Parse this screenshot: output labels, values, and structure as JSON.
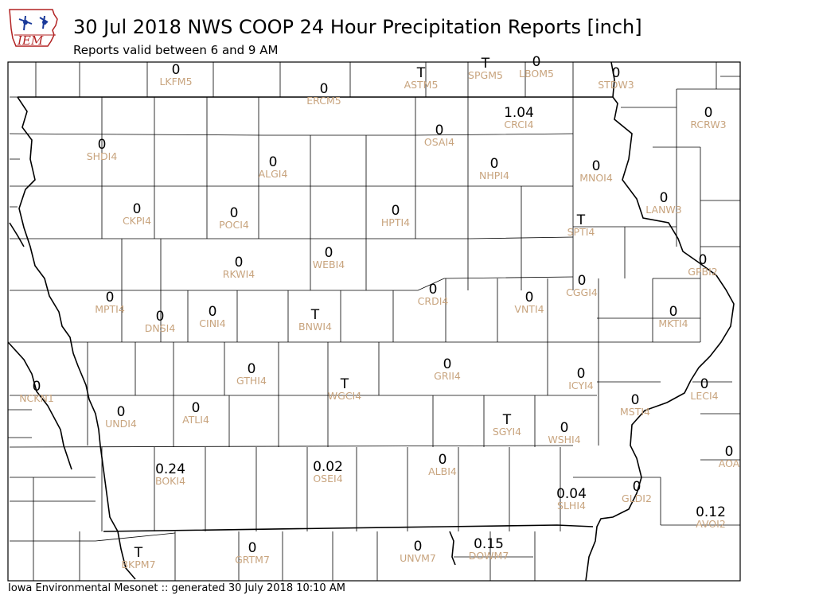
{
  "header": {
    "logo_text": "IEM",
    "title": "30 Jul 2018 NWS COOP 24 Hour Precipitation Reports [inch]",
    "subtitle": "Reports valid between 6 and 9 AM"
  },
  "footer": {
    "text": "Iowa Environmental Mesonet :: generated 30 July 2018 10:10 AM"
  },
  "colors": {
    "value": "#000000",
    "station_id": "#c8a47e",
    "county_line": "#000000",
    "background": "#ffffff"
  },
  "stations": [
    {
      "id": "LKFM5",
      "value": "0"
    },
    {
      "id": "ASTM5",
      "value": "T"
    },
    {
      "id": "SPGM5",
      "value": "T"
    },
    {
      "id": "LBOM5",
      "value": "0"
    },
    {
      "id": "STDW3",
      "value": "0"
    },
    {
      "id": "ERCM5",
      "value": "0"
    },
    {
      "id": "CRCI4",
      "value": "1.04"
    },
    {
      "id": "RCRW3",
      "value": "0"
    },
    {
      "id": "OSAI4",
      "value": "0"
    },
    {
      "id": "SHDI4",
      "value": "0"
    },
    {
      "id": "ALGI4",
      "value": "0"
    },
    {
      "id": "NHPI4",
      "value": "0"
    },
    {
      "id": "MNOI4",
      "value": "0"
    },
    {
      "id": "LANW3",
      "value": "0"
    },
    {
      "id": "CKPI4",
      "value": "0"
    },
    {
      "id": "POCI4",
      "value": "0"
    },
    {
      "id": "HPTI4",
      "value": "0"
    },
    {
      "id": "SPTI4",
      "value": "T"
    },
    {
      "id": "RKWI4",
      "value": "0"
    },
    {
      "id": "WEBI4",
      "value": "0"
    },
    {
      "id": "GPBI2",
      "value": "0"
    },
    {
      "id": "CRDI4",
      "value": "0"
    },
    {
      "id": "CGGI4",
      "value": "0"
    },
    {
      "id": "MPTI4",
      "value": "0"
    },
    {
      "id": "DNSI4",
      "value": "0"
    },
    {
      "id": "CINI4",
      "value": "0"
    },
    {
      "id": "BNWI4",
      "value": "T"
    },
    {
      "id": "VNTI4",
      "value": "0"
    },
    {
      "id": "MKTI4",
      "value": "0"
    },
    {
      "id": "GTHI4",
      "value": "0"
    },
    {
      "id": "GRII4",
      "value": "0"
    },
    {
      "id": "ICYI4",
      "value": "0"
    },
    {
      "id": "WGCI4",
      "value": "T"
    },
    {
      "id": "LECI4",
      "value": "0"
    },
    {
      "id": "NCKN1",
      "value": "0"
    },
    {
      "id": "UNDI4",
      "value": "0"
    },
    {
      "id": "ATLI4",
      "value": "0"
    },
    {
      "id": "MSTI4",
      "value": "0"
    },
    {
      "id": "SGYI4",
      "value": "T"
    },
    {
      "id": "WSHI4",
      "value": "0"
    },
    {
      "id": "AOA",
      "value": "0"
    },
    {
      "id": "BOKI4",
      "value": "0.24"
    },
    {
      "id": "OSEI4",
      "value": "0.02"
    },
    {
      "id": "ALBI4",
      "value": "0"
    },
    {
      "id": "SLHI4",
      "value": "0.04"
    },
    {
      "id": "GLDI2",
      "value": "0"
    },
    {
      "id": "AVOI2",
      "value": "0.12"
    },
    {
      "id": "BKPM7",
      "value": "T"
    },
    {
      "id": "GRTM7",
      "value": "0"
    },
    {
      "id": "UNVM7",
      "value": "0"
    },
    {
      "id": "DOWM7",
      "value": "0.15"
    }
  ]
}
